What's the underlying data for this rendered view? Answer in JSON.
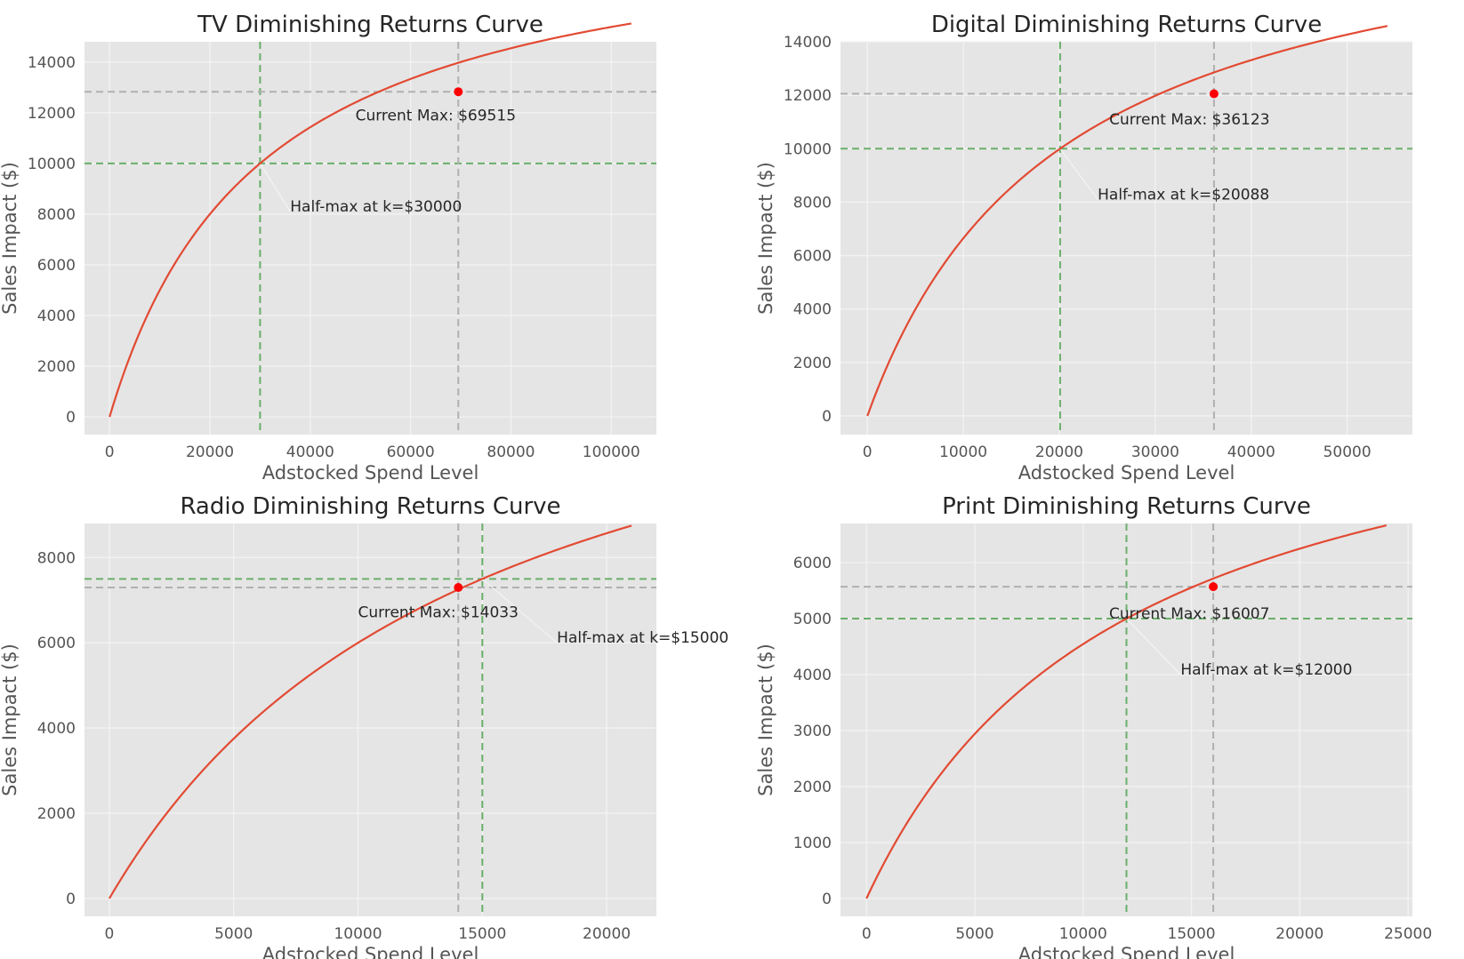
{
  "chart_data": [
    {
      "type": "line",
      "title": "TV Diminishing Returns Curve",
      "xlabel": "Adstocked Spend Level",
      "ylabel": "Sales Impact ($)",
      "xlim": [
        -5000,
        109000
      ],
      "ylim": [
        -700,
        14800
      ],
      "xticks": [
        0,
        20000,
        40000,
        60000,
        80000,
        100000
      ],
      "yticks": [
        0,
        2000,
        4000,
        6000,
        8000,
        10000,
        12000,
        14000
      ],
      "grid": true,
      "curve": {
        "vmax": 20000,
        "k": 30000,
        "x_end": 104000,
        "color": "#e24a33"
      },
      "half_max": {
        "x": 30000,
        "y": 10000,
        "label": "Half-max at k=$30000",
        "label_x": 36000,
        "label_y": 8100
      },
      "current_max": {
        "x": 69515,
        "y": 12829,
        "label": "Current Max: $69515",
        "label_x": 49000,
        "label_y": 11700
      }
    },
    {
      "type": "line",
      "title": "Digital Diminishing Returns Curve",
      "xlabel": "Adstocked Spend Level",
      "ylabel": "Sales Impact ($)",
      "xlim": [
        -2800,
        56800
      ],
      "ylim": [
        -700,
        14000
      ],
      "xticks": [
        0,
        10000,
        20000,
        30000,
        40000,
        50000
      ],
      "yticks": [
        0,
        2000,
        4000,
        6000,
        8000,
        10000,
        12000,
        14000
      ],
      "grid": true,
      "curve": {
        "vmax": 20000,
        "k": 20088,
        "x_end": 54200,
        "color": "#e24a33"
      },
      "half_max": {
        "x": 20088,
        "y": 10000,
        "label": "Half-max at k=$20088",
        "label_x": 24000,
        "label_y": 8100
      },
      "current_max": {
        "x": 36123,
        "y": 12054,
        "label": "Current Max: $36123",
        "label_x": 25200,
        "label_y": 10900
      }
    },
    {
      "type": "line",
      "title": "Radio Diminishing Returns Curve",
      "xlabel": "Adstocked Spend Level",
      "ylabel": "Sales Impact ($)",
      "xlim": [
        -1000,
        22000
      ],
      "ylim": [
        -420,
        8800
      ],
      "xticks": [
        0,
        5000,
        10000,
        15000,
        20000
      ],
      "yticks": [
        0,
        2000,
        4000,
        6000,
        8000
      ],
      "grid": true,
      "curve": {
        "vmax": 15000,
        "k": 15000,
        "x_end": 21000,
        "color": "#e24a33"
      },
      "half_max": {
        "x": 15000,
        "y": 7500,
        "label": "Half-max at k=$15000",
        "label_x": 18000,
        "label_y": 6000
      },
      "current_max": {
        "x": 14033,
        "y": 7298,
        "label": "Current Max: $14033",
        "label_x": 10000,
        "label_y": 6600
      }
    },
    {
      "type": "line",
      "title": "Print Diminishing Returns Curve",
      "xlabel": "Adstocked Spend Level",
      "ylabel": "Sales Impact ($)",
      "xlim": [
        -1200,
        25200
      ],
      "ylim": [
        -320,
        6700
      ],
      "xticks": [
        0,
        5000,
        10000,
        15000,
        20000,
        25000
      ],
      "yticks": [
        0,
        1000,
        2000,
        3000,
        4000,
        5000,
        6000
      ],
      "grid": true,
      "curve": {
        "vmax": 10000,
        "k": 12000,
        "x_end": 24000,
        "color": "#e24a33"
      },
      "half_max": {
        "x": 12000,
        "y": 5000,
        "label": "Half-max at k=$12000",
        "label_x": 14500,
        "label_y": 4000
      },
      "current_max": {
        "x": 16007,
        "y": 5571,
        "label": "Current Max: $16007",
        "label_x": 11200,
        "label_y": 5000
      }
    }
  ]
}
